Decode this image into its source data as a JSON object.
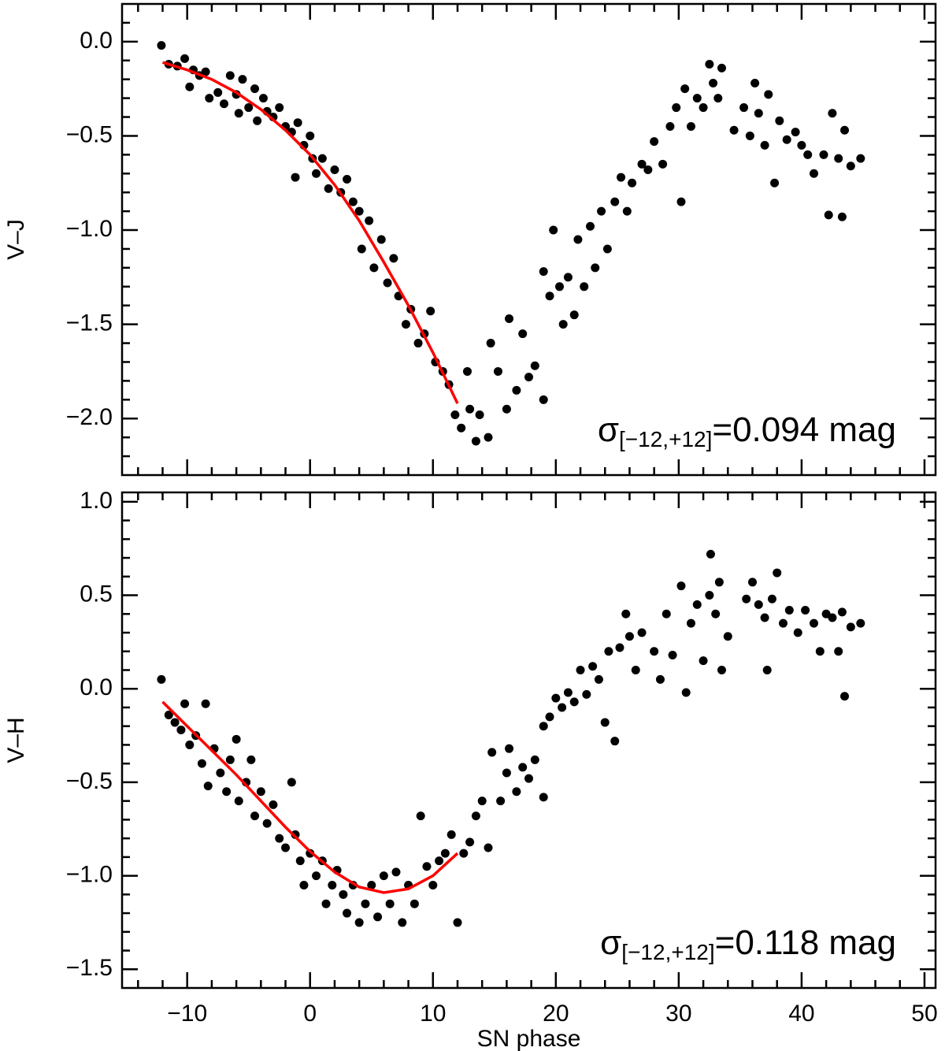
{
  "chart_data": [
    {
      "type": "scatter",
      "ylabel": "V–J",
      "xlim": [
        -15.3,
        50.9
      ],
      "ylim": [
        -2.3,
        0.2
      ],
      "xticks": [
        {
          "value": -10,
          "label": "−10"
        },
        0,
        10,
        20,
        30,
        40,
        50
      ],
      "yticks": [
        {
          "value": 0,
          "label": "0.0"
        },
        {
          "value": -0.5,
          "label": "−0.5"
        },
        {
          "value": -1,
          "label": "−1.0"
        },
        {
          "value": -1.5,
          "label": "−1.5"
        },
        {
          "value": -2,
          "label": "−2.0"
        }
      ],
      "annotation": {
        "symbol": "σ",
        "subscript": "[−12,+12]",
        "text": "=0.094 mag"
      },
      "series": [
        {
          "color": "#000000",
          "kind": "points",
          "x": [
            -12.1,
            -11.5,
            -10.8,
            -10.2,
            -9.8,
            -9.5,
            -9,
            -8.5,
            -8.2,
            -7.5,
            -7,
            -6.5,
            -6,
            -5.8,
            -5.5,
            -5,
            -4.5,
            -4.3,
            -3.8,
            -3.5,
            -3,
            -2.5,
            -2,
            -1.5,
            -1,
            -0.5,
            0,
            0.2,
            -1.2,
            0.5,
            1,
            1.5,
            2,
            2.5,
            3,
            3.5,
            4,
            4.2,
            4.8,
            5.2,
            5.8,
            6.3,
            6.8,
            7.2,
            7.8,
            8.2,
            8.8,
            9.3,
            9.8,
            10.2,
            10.8,
            11.3,
            11.8,
            12.3,
            12.8,
            13,
            13.5,
            13.8,
            14.5,
            14.7,
            15.3,
            16,
            16.2,
            16.8,
            17.3,
            17.8,
            18.3,
            19,
            19,
            19.5,
            19.8,
            20.3,
            20.6,
            21,
            21.5,
            21.8,
            22.3,
            22.8,
            23.2,
            23.7,
            24.2,
            24.8,
            25.3,
            25.8,
            26.2,
            27,
            27.5,
            28,
            28.7,
            29.3,
            29.8,
            30.2,
            30.5,
            31,
            31.5,
            32,
            32.5,
            32.8,
            33.2,
            33.5,
            34.5,
            35.3,
            35.8,
            36.2,
            36.5,
            37,
            37.3,
            37.8,
            38.2,
            38.8,
            39.5,
            40,
            40.5,
            41,
            41.8,
            42.2,
            42.5,
            43,
            43.3,
            43.5,
            44,
            44.8
          ],
          "values": [
            -0.02,
            -0.12,
            -0.13,
            -0.09,
            -0.24,
            -0.15,
            -0.18,
            -0.16,
            -0.3,
            -0.27,
            -0.33,
            -0.18,
            -0.28,
            -0.38,
            -0.2,
            -0.35,
            -0.25,
            -0.42,
            -0.3,
            -0.37,
            -0.4,
            -0.35,
            -0.45,
            -0.48,
            -0.43,
            -0.55,
            -0.5,
            -0.62,
            -0.72,
            -0.7,
            -0.62,
            -0.78,
            -0.68,
            -0.8,
            -0.73,
            -0.85,
            -0.9,
            -1.1,
            -0.95,
            -1.2,
            -1.05,
            -1.28,
            -1.15,
            -1.35,
            -1.5,
            -1.42,
            -1.6,
            -1.55,
            -1.43,
            -1.7,
            -1.75,
            -1.82,
            -1.98,
            -2.05,
            -1.75,
            -1.95,
            -2.12,
            -1.98,
            -2.1,
            -1.6,
            -1.75,
            -1.95,
            -1.47,
            -1.85,
            -1.55,
            -1.78,
            -1.72,
            -1.9,
            -1.22,
            -1.35,
            -1.0,
            -1.3,
            -1.5,
            -1.25,
            -1.45,
            -1.05,
            -1.3,
            -0.98,
            -1.2,
            -0.9,
            -1.1,
            -0.85,
            -0.72,
            -0.9,
            -0.75,
            -0.65,
            -0.68,
            -0.53,
            -0.65,
            -0.45,
            -0.35,
            -0.85,
            -0.25,
            -0.45,
            -0.3,
            -0.35,
            -0.12,
            -0.22,
            -0.3,
            -0.14,
            -0.47,
            -0.35,
            -0.5,
            -0.22,
            -0.38,
            -0.55,
            -0.28,
            -0.75,
            -0.42,
            -0.52,
            -0.48,
            -0.55,
            -0.6,
            -0.7,
            -0.6,
            -0.92,
            -0.38,
            -0.62,
            -0.93,
            -0.47,
            -0.66,
            -0.62
          ]
        },
        {
          "color": "#ff0000",
          "kind": "line",
          "x": [
            -12,
            -10,
            -8,
            -6,
            -4,
            -2,
            0,
            2,
            4,
            6,
            8,
            10,
            12
          ],
          "values": [
            -0.11,
            -0.15,
            -0.2,
            -0.27,
            -0.36,
            -0.47,
            -0.6,
            -0.76,
            -0.95,
            -1.17,
            -1.4,
            -1.65,
            -1.92
          ]
        }
      ]
    },
    {
      "type": "scatter",
      "ylabel": "V–H",
      "xlabel": "SN phase",
      "xlim": [
        -15.3,
        50.9
      ],
      "ylim": [
        -1.6,
        1.05
      ],
      "xticks": [
        {
          "value": -10,
          "label": "−10"
        },
        0,
        10,
        20,
        30,
        40,
        50
      ],
      "yticks": [
        {
          "value": 1,
          "label": "1.0"
        },
        0.5,
        {
          "value": 0,
          "label": "0.0"
        },
        {
          "value": -0.5,
          "label": "−0.5"
        },
        {
          "value": -1,
          "label": "−1.0"
        },
        {
          "value": -1.5,
          "label": "−1.5"
        }
      ],
      "annotation": {
        "symbol": "σ",
        "subscript": "[−12,+12]",
        "text": "=0.118 mag"
      },
      "series": [
        {
          "color": "#000000",
          "kind": "points",
          "x": [
            -12.1,
            -11.5,
            -11,
            -10.5,
            -10.2,
            -9.8,
            -9.3,
            -8.8,
            -8.5,
            -8.3,
            -7.8,
            -7.3,
            -6.8,
            -6.5,
            -6,
            -5.8,
            -5.2,
            -4.8,
            -4.5,
            -4,
            -3.5,
            -3,
            -2.5,
            -2,
            -1.5,
            -1.2,
            -0.8,
            -0.5,
            0,
            0.5,
            1,
            1.3,
            1.8,
            2.2,
            2.7,
            3,
            3.5,
            4,
            4.5,
            5,
            5.5,
            6,
            6.5,
            7,
            7.5,
            8,
            8.5,
            9,
            9.5,
            10,
            10.5,
            11,
            11.5,
            12,
            12.5,
            13,
            13.5,
            14,
            14.5,
            14.8,
            15.5,
            16,
            16.2,
            16.8,
            17.3,
            17.8,
            18.3,
            19,
            19,
            19.5,
            20,
            20.5,
            21,
            21.5,
            22,
            22.5,
            23,
            23.5,
            24,
            24.3,
            24.8,
            25.2,
            25.7,
            26,
            26.5,
            27,
            28,
            28.5,
            29,
            29.5,
            30.2,
            30.6,
            31,
            31.5,
            32,
            32.5,
            32.6,
            33,
            33.3,
            33.5,
            34,
            35.5,
            36,
            36.5,
            37,
            37.2,
            37.6,
            38,
            38.5,
            39,
            39.7,
            40.3,
            41,
            41.5,
            42,
            42.5,
            43,
            43.3,
            43.5,
            44,
            44.8
          ],
          "values": [
            0.05,
            -0.14,
            -0.18,
            -0.22,
            -0.08,
            -0.3,
            -0.25,
            -0.4,
            -0.08,
            -0.52,
            -0.32,
            -0.45,
            -0.55,
            -0.38,
            -0.27,
            -0.6,
            -0.5,
            -0.38,
            -0.68,
            -0.55,
            -0.72,
            -0.62,
            -0.8,
            -0.85,
            -0.5,
            -0.78,
            -0.92,
            -1.05,
            -0.88,
            -1.0,
            -0.92,
            -1.15,
            -1.05,
            -0.97,
            -1.1,
            -1.2,
            -1.05,
            -1.25,
            -1.15,
            -1.05,
            -1.22,
            -1.0,
            -1.15,
            -0.98,
            -1.25,
            -1.05,
            -1.15,
            -0.68,
            -0.95,
            -1.05,
            -0.92,
            -0.88,
            -0.78,
            -1.25,
            -0.88,
            -0.82,
            -0.68,
            -0.6,
            -0.85,
            -0.34,
            -0.6,
            -0.45,
            -0.32,
            -0.55,
            -0.42,
            -0.48,
            -0.38,
            -0.58,
            -0.2,
            -0.15,
            -0.05,
            -0.1,
            -0.02,
            -0.07,
            0.1,
            -0.03,
            0.12,
            0.05,
            -0.18,
            0.2,
            -0.28,
            0.22,
            0.4,
            0.28,
            0.1,
            0.3,
            0.2,
            0.05,
            0.4,
            0.18,
            0.55,
            -0.02,
            0.35,
            0.45,
            0.15,
            0.5,
            0.72,
            0.4,
            0.57,
            0.1,
            0.28,
            0.48,
            0.57,
            0.45,
            0.38,
            0.1,
            0.48,
            0.62,
            0.35,
            0.42,
            0.3,
            0.42,
            0.35,
            0.2,
            0.4,
            0.38,
            0.2,
            0.41,
            -0.04,
            0.33,
            0.35
          ]
        },
        {
          "color": "#ff0000",
          "kind": "line",
          "x": [
            -12,
            -10,
            -8,
            -6,
            -4,
            -2,
            0,
            2,
            4,
            6,
            8,
            10,
            12
          ],
          "values": [
            -0.07,
            -0.2,
            -0.33,
            -0.46,
            -0.6,
            -0.74,
            -0.87,
            -0.98,
            -1.06,
            -1.09,
            -1.07,
            -1.0,
            -0.88
          ]
        }
      ]
    }
  ]
}
